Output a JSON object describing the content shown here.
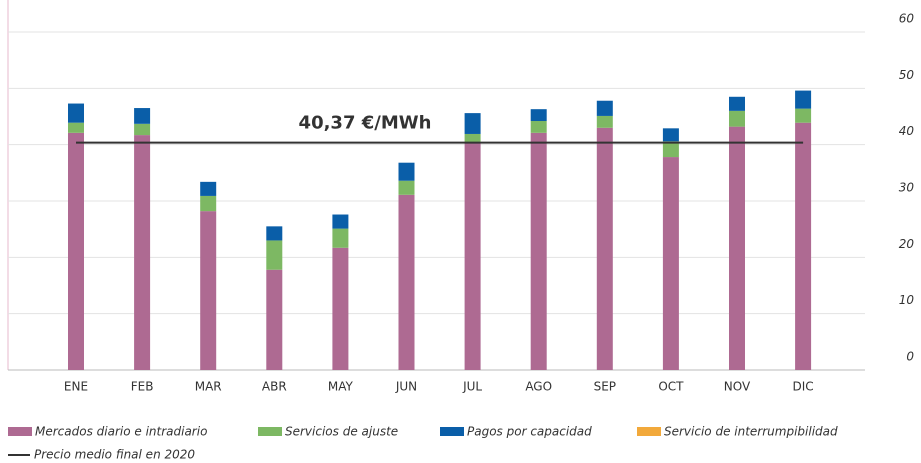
{
  "chart_data": {
    "type": "stacked_bar",
    "categories": [
      "ENE",
      "FEB",
      "MAR",
      "ABR",
      "MAY",
      "JUN",
      "JUL",
      "AGO",
      "SEP",
      "OCT",
      "NOV",
      "DIC"
    ],
    "series": [
      {
        "name": "Mercados diario e intradiario",
        "color": "#ae6a92",
        "values": [
          42.1,
          41.7,
          28.2,
          17.8,
          21.7,
          31.1,
          40.3,
          42.1,
          43.0,
          37.8,
          43.2,
          43.9
        ]
      },
      {
        "name": "Servicios de ajuste",
        "color": "#7db863",
        "values": [
          1.8,
          2.0,
          2.7,
          5.2,
          3.4,
          2.5,
          1.6,
          2.1,
          2.1,
          2.8,
          2.8,
          2.5
        ]
      },
      {
        "name": "Pagos por capacidad",
        "color": "#0a5ea8",
        "values": [
          3.4,
          2.8,
          2.5,
          2.5,
          2.5,
          3.2,
          3.7,
          2.1,
          2.7,
          2.3,
          2.5,
          3.2
        ]
      },
      {
        "name": "Servicio de interrumpibilidad",
        "color": "#f2a93b",
        "values": [
          0,
          0,
          0,
          0,
          0,
          0,
          0,
          0,
          0,
          0,
          0,
          0
        ]
      }
    ],
    "price": {
      "name": "Precio medio final en 2020",
      "color": "#333333",
      "values": [
        40.37
      ],
      "value_labels": [
        "40,37 €/MWh"
      ]
    },
    "ylim": [
      0,
      60
    ],
    "yticks": [
      0,
      10,
      20,
      30,
      40,
      50,
      60
    ],
    "grid": true
  }
}
